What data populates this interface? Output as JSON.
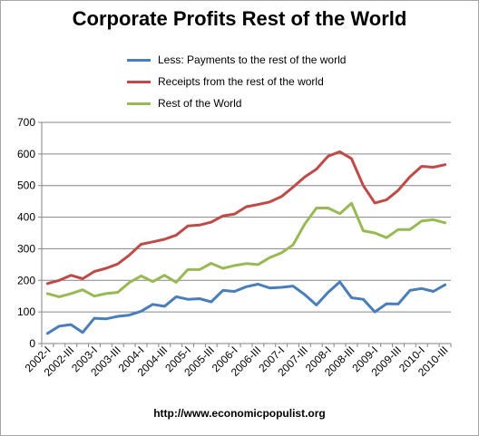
{
  "chart_data": {
    "type": "line",
    "title": "Corporate Profits Rest of the World",
    "xlabel": "",
    "ylabel": "",
    "ylim": [
      0,
      700
    ],
    "yticks": [
      0,
      100,
      200,
      300,
      400,
      500,
      600,
      700
    ],
    "grid": "horizontal",
    "legend_position": "top",
    "categories": [
      "2002-I",
      "2002-II",
      "2002-III",
      "2002-IV",
      "2003-I",
      "2003-II",
      "2003-III",
      "2003-IV",
      "2004-I",
      "2004-II",
      "2004-III",
      "2004-IV",
      "2005-I",
      "2005-II",
      "2005-III",
      "2005-IV",
      "2006-I",
      "2006-II",
      "2006-III",
      "2006-IV",
      "2007-I",
      "2007-II",
      "2007-III",
      "2007-IV",
      "2008-I",
      "2008-II",
      "2008-III",
      "2008-IV",
      "2009-I",
      "2009-II",
      "2009-III",
      "2009-IV",
      "2010-I",
      "2010-II",
      "2010-III"
    ],
    "tick_labels": [
      "2002-I",
      "2002-III",
      "2003-I",
      "2003-III",
      "2004-I",
      "2004-III",
      "2005-I",
      "2005-III",
      "2006-I",
      "2006-III",
      "2007-I",
      "2007-III",
      "2008-I",
      "2008-III",
      "2009-I",
      "2009-III",
      "2010-I",
      "2010-III"
    ],
    "series": [
      {
        "name": "Less: Payments to the rest of the world",
        "color": "#4a7ebb",
        "values": [
          32,
          55,
          60,
          35,
          80,
          78,
          86,
          90,
          102,
          124,
          118,
          148,
          140,
          142,
          132,
          168,
          165,
          180,
          188,
          176,
          178,
          182,
          155,
          122,
          162,
          195,
          145,
          140,
          100,
          126,
          125,
          168,
          174,
          165,
          186
        ]
      },
      {
        "name": "Receipts from the rest of the world",
        "color": "#be4b48",
        "values": [
          190,
          200,
          216,
          205,
          228,
          238,
          252,
          280,
          314,
          322,
          330,
          343,
          372,
          375,
          384,
          404,
          410,
          433,
          440,
          448,
          465,
          495,
          527,
          552,
          593,
          607,
          585,
          500,
          445,
          455,
          485,
          528,
          561,
          558,
          566
        ]
      },
      {
        "name": "Rest of the World",
        "color": "#98b954",
        "values": [
          158,
          148,
          158,
          170,
          150,
          158,
          162,
          193,
          214,
          196,
          216,
          194,
          234,
          234,
          254,
          238,
          247,
          253,
          250,
          272,
          287,
          312,
          378,
          429,
          429,
          411,
          444,
          357,
          350,
          335,
          361,
          361,
          388,
          392,
          382
        ]
      }
    ]
  },
  "footer": "http://www.economicpopulist.org"
}
